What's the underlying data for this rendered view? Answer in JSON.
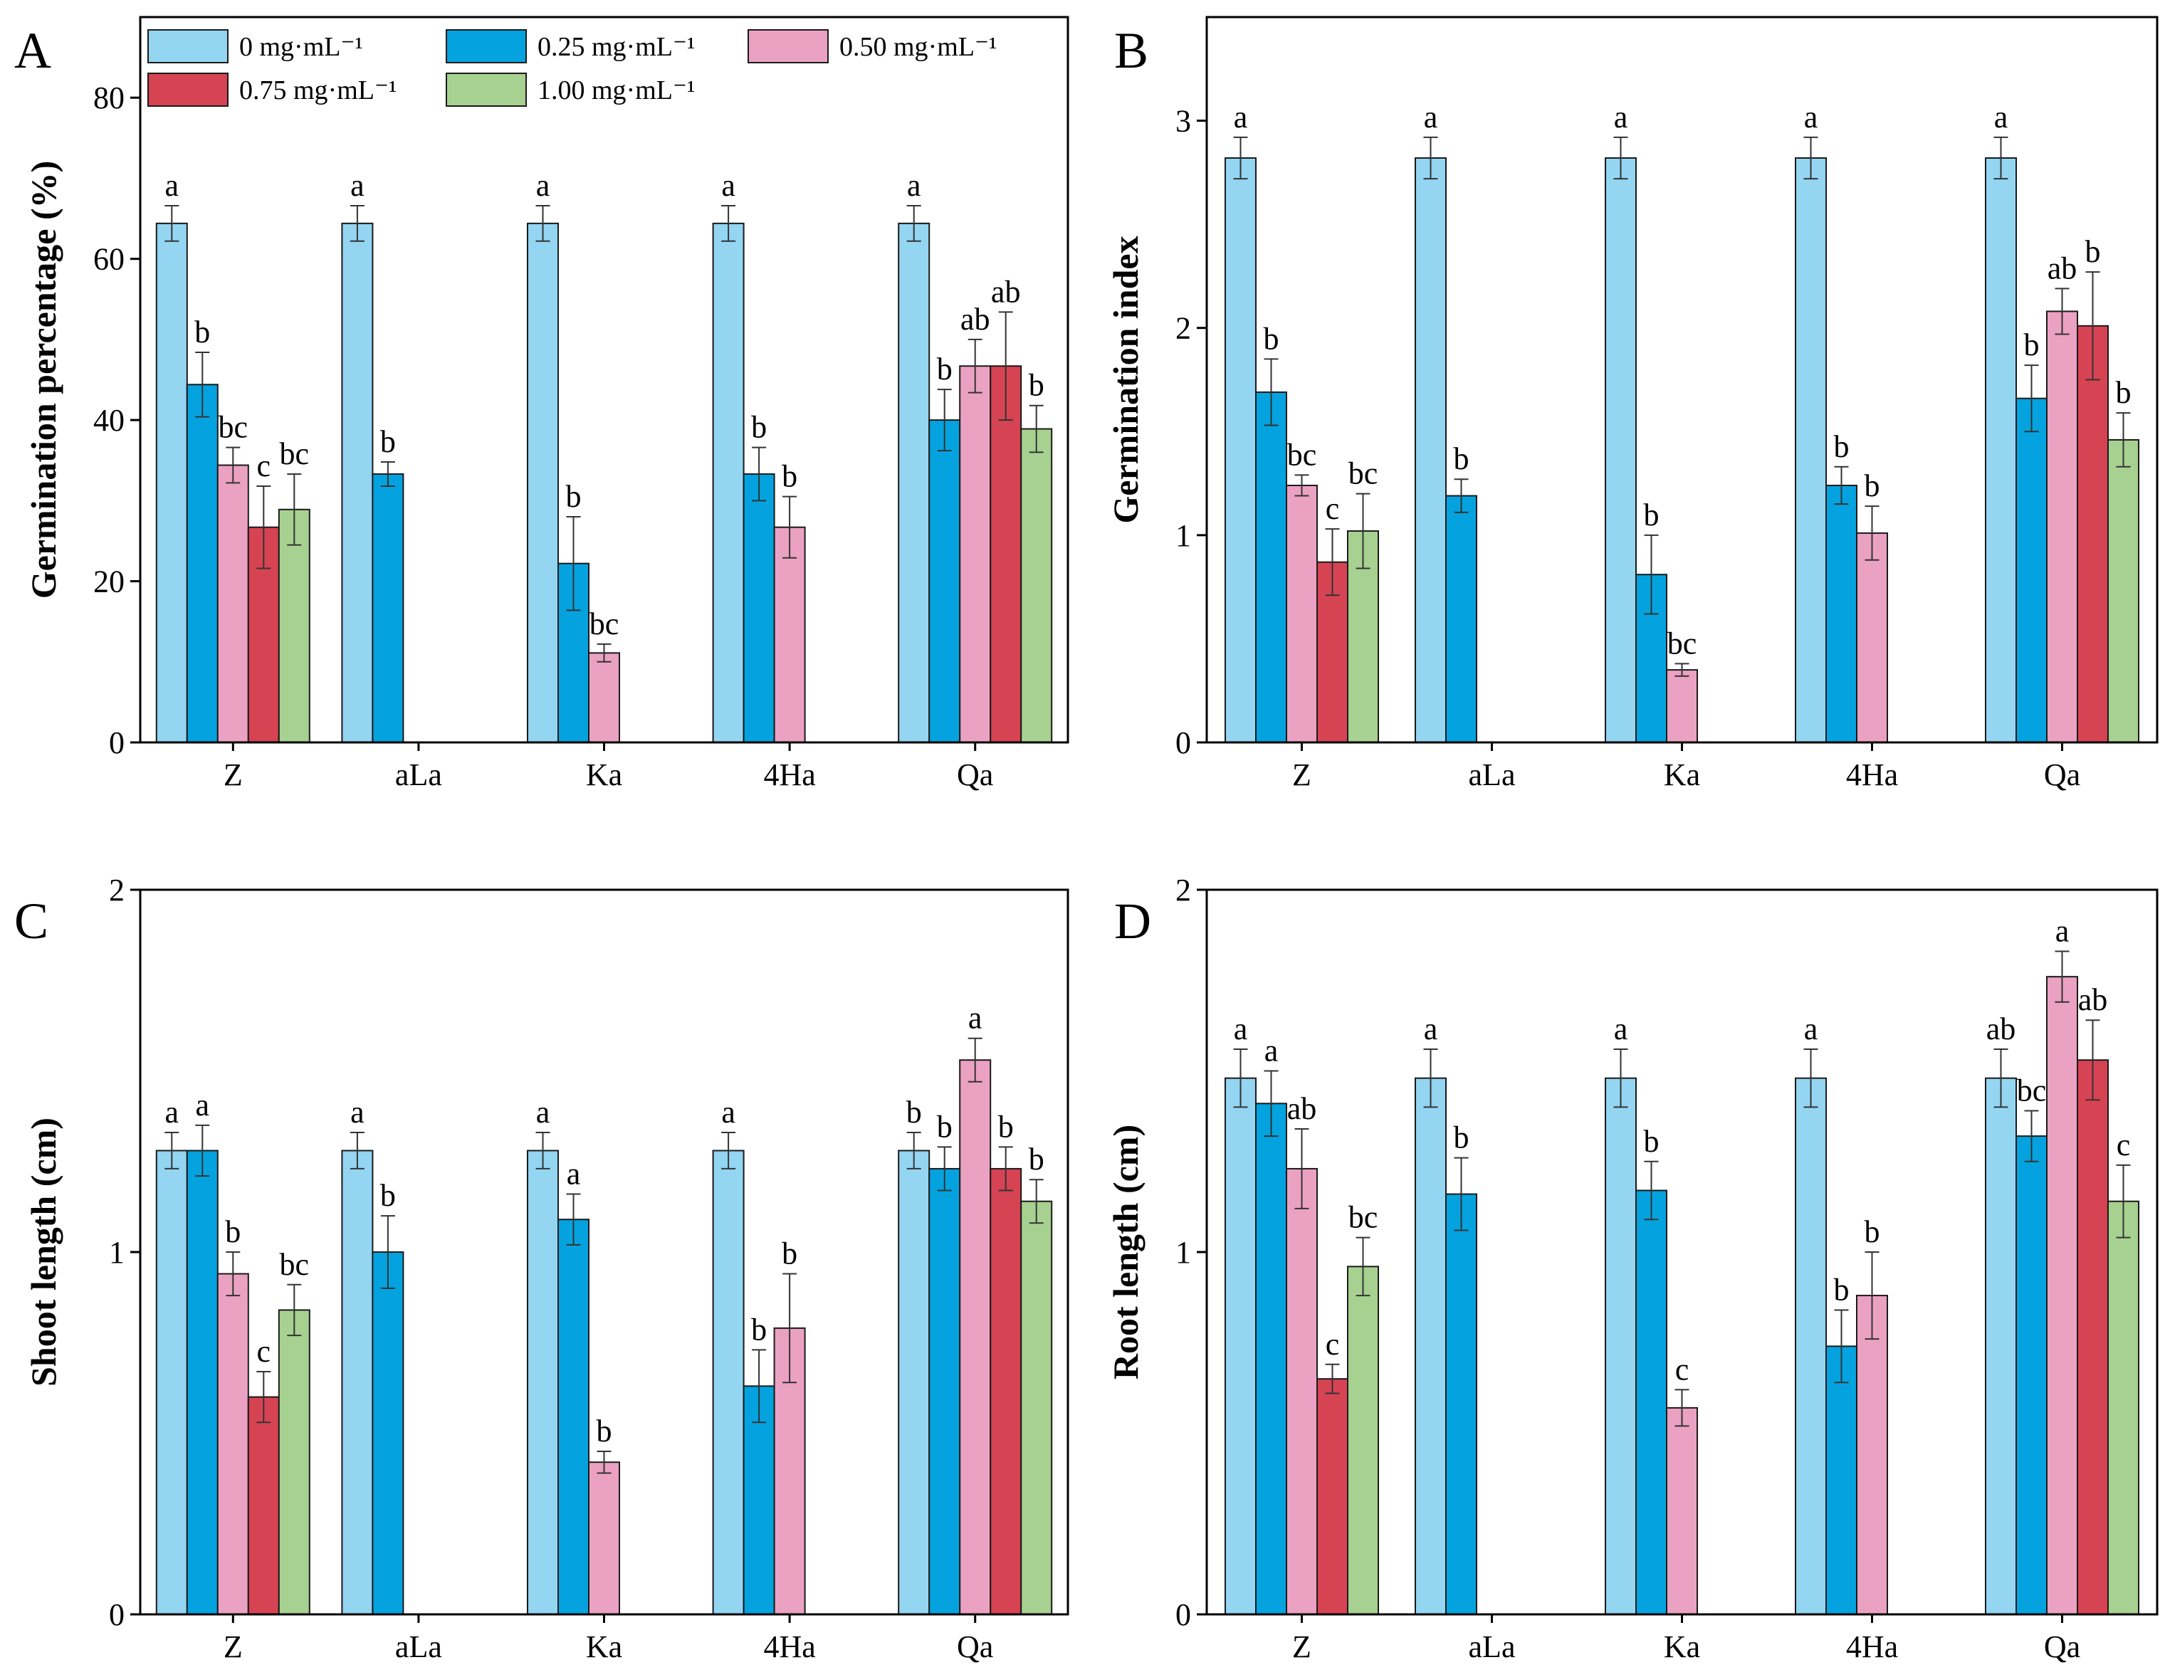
{
  "legend": {
    "entries": [
      {
        "label": "0 mg·mL⁻¹",
        "color": "#94d5f2"
      },
      {
        "label": "0.25 mg·mL⁻¹",
        "color": "#04a3df"
      },
      {
        "label": "0.50 mg·mL⁻¹",
        "color": "#eba2c2"
      },
      {
        "label": "0.75 mg·mL⁻¹",
        "color": "#d64353"
      },
      {
        "label": "1.00 mg·mL⁻¹",
        "color": "#a7d190"
      }
    ]
  },
  "colors": [
    "#94d5f2",
    "#04a3df",
    "#eba2c2",
    "#d64353",
    "#a7d190"
  ],
  "chart_data": [
    {
      "panel": "A",
      "type": "bar",
      "title": "",
      "xlabel": "",
      "ylabel": "Germination percentage (%)",
      "ylim": [
        0,
        90
      ],
      "yticks": [
        0,
        20,
        40,
        60,
        80
      ],
      "categories": [
        "Z",
        "aLa",
        "Ka",
        "4Ha",
        "Qa"
      ],
      "series": [
        {
          "name": "0 mg·mL⁻¹",
          "values": [
            64.4,
            64.4,
            64.4,
            64.4,
            64.4
          ],
          "errors": [
            2.2,
            2.2,
            2.2,
            2.2,
            2.2
          ],
          "labels": [
            "a",
            "a",
            "a",
            "a",
            "a"
          ]
        },
        {
          "name": "0.25 mg·mL⁻¹",
          "values": [
            44.4,
            33.3,
            22.2,
            33.3,
            40.0
          ],
          "errors": [
            4.0,
            1.5,
            5.8,
            3.3,
            3.8
          ],
          "labels": [
            "b",
            "b",
            "b",
            "b",
            "b"
          ]
        },
        {
          "name": "0.50 mg·mL⁻¹",
          "values": [
            34.4,
            null,
            11.1,
            26.7,
            46.7
          ],
          "errors": [
            2.2,
            null,
            1.1,
            3.8,
            3.3
          ],
          "labels": [
            "bc",
            "",
            "bc",
            "b",
            "ab"
          ]
        },
        {
          "name": "0.75 mg·mL⁻¹",
          "values": [
            26.7,
            null,
            null,
            null,
            46.7
          ],
          "errors": [
            5.1,
            null,
            null,
            null,
            6.7
          ],
          "labels": [
            "c",
            "",
            "",
            "",
            "ab"
          ]
        },
        {
          "name": "1.00 mg·mL⁻¹",
          "values": [
            28.9,
            null,
            null,
            null,
            38.9
          ],
          "errors": [
            4.4,
            null,
            null,
            null,
            2.9
          ],
          "labels": [
            "bc",
            "",
            "",
            "",
            "b"
          ]
        }
      ]
    },
    {
      "panel": "B",
      "type": "bar",
      "title": "",
      "xlabel": "",
      "ylabel": "Germination index",
      "ylim": [
        0,
        3.5
      ],
      "yticks": [
        0,
        1,
        2,
        3
      ],
      "categories": [
        "Z",
        "aLa",
        "Ka",
        "4Ha",
        "Qa"
      ],
      "series": [
        {
          "name": "0 mg·mL⁻¹",
          "values": [
            2.82,
            2.82,
            2.82,
            2.82,
            2.82
          ],
          "errors": [
            0.1,
            0.1,
            0.1,
            0.1,
            0.1
          ],
          "labels": [
            "a",
            "a",
            "a",
            "a",
            "a"
          ]
        },
        {
          "name": "0.25 mg·mL⁻¹",
          "values": [
            1.69,
            1.19,
            0.81,
            1.24,
            1.66
          ],
          "errors": [
            0.16,
            0.08,
            0.19,
            0.09,
            0.16
          ],
          "labels": [
            "b",
            "b",
            "b",
            "b",
            "b"
          ]
        },
        {
          "name": "0.50 mg·mL⁻¹",
          "values": [
            1.24,
            null,
            0.35,
            1.01,
            2.08
          ],
          "errors": [
            0.05,
            null,
            0.03,
            0.13,
            0.11
          ],
          "labels": [
            "bc",
            "",
            "bc",
            "b",
            "ab"
          ]
        },
        {
          "name": "0.75 mg·mL⁻¹",
          "values": [
            0.87,
            null,
            null,
            null,
            2.01
          ],
          "errors": [
            0.16,
            null,
            null,
            null,
            0.26
          ],
          "labels": [
            "c",
            "",
            "",
            "",
            "b"
          ]
        },
        {
          "name": "1.00 mg·mL⁻¹",
          "values": [
            1.02,
            null,
            null,
            null,
            1.46
          ],
          "errors": [
            0.18,
            null,
            null,
            null,
            0.13
          ],
          "labels": [
            "bc",
            "",
            "",
            "",
            "b"
          ]
        }
      ]
    },
    {
      "panel": "C",
      "type": "bar",
      "title": "",
      "xlabel": "",
      "ylabel": "Shoot length (cm)",
      "ylim": [
        0,
        2
      ],
      "yticks": [
        0,
        1,
        2
      ],
      "categories": [
        "Z",
        "aLa",
        "Ka",
        "4Ha",
        "Qa"
      ],
      "series": [
        {
          "name": "0 mg·mL⁻¹",
          "values": [
            1.28,
            1.28,
            1.28,
            1.28,
            1.28
          ],
          "errors": [
            0.05,
            0.05,
            0.05,
            0.05,
            0.05
          ],
          "labels": [
            "a",
            "a",
            "a",
            "a",
            "b"
          ]
        },
        {
          "name": "0.25 mg·mL⁻¹",
          "values": [
            1.28,
            1.0,
            1.09,
            0.63,
            1.23
          ],
          "errors": [
            0.07,
            0.1,
            0.07,
            0.1,
            0.06
          ],
          "labels": [
            "a",
            "b",
            "a",
            "b",
            "b"
          ]
        },
        {
          "name": "0.50 mg·mL⁻¹",
          "values": [
            0.94,
            null,
            0.42,
            0.79,
            1.53
          ],
          "errors": [
            0.06,
            null,
            0.03,
            0.15,
            0.06
          ],
          "labels": [
            "b",
            "",
            "b",
            "b",
            "a"
          ]
        },
        {
          "name": "0.75 mg·mL⁻¹",
          "values": [
            0.6,
            null,
            null,
            null,
            1.23
          ],
          "errors": [
            0.07,
            null,
            null,
            null,
            0.06
          ],
          "labels": [
            "c",
            "",
            "",
            "",
            "b"
          ]
        },
        {
          "name": "1.00 mg·mL⁻¹",
          "values": [
            0.84,
            null,
            null,
            null,
            1.14
          ],
          "errors": [
            0.07,
            null,
            null,
            null,
            0.06
          ],
          "labels": [
            "bc",
            "",
            "",
            "",
            "b"
          ]
        }
      ]
    },
    {
      "panel": "D",
      "type": "bar",
      "title": "",
      "xlabel": "",
      "ylabel": "Root length (cm)",
      "ylim": [
        0,
        2
      ],
      "yticks": [
        0,
        1,
        2
      ],
      "categories": [
        "Z",
        "aLa",
        "Ka",
        "4Ha",
        "Qa"
      ],
      "series": [
        {
          "name": "0 mg·mL⁻¹",
          "values": [
            1.48,
            1.48,
            1.48,
            1.48,
            1.48
          ],
          "errors": [
            0.08,
            0.08,
            0.08,
            0.08,
            0.08
          ],
          "labels": [
            "a",
            "a",
            "a",
            "a",
            "ab"
          ]
        },
        {
          "name": "0.25 mg·mL⁻¹",
          "values": [
            1.41,
            1.16,
            1.17,
            0.74,
            1.32
          ],
          "errors": [
            0.09,
            0.1,
            0.08,
            0.1,
            0.07
          ],
          "labels": [
            "a",
            "b",
            "b",
            "b",
            "bc"
          ]
        },
        {
          "name": "0.50 mg·mL⁻¹",
          "values": [
            1.23,
            null,
            0.57,
            0.88,
            1.76
          ],
          "errors": [
            0.11,
            null,
            0.05,
            0.12,
            0.07
          ],
          "labels": [
            "ab",
            "",
            "c",
            "b",
            "a"
          ]
        },
        {
          "name": "0.75 mg·mL⁻¹",
          "values": [
            0.65,
            null,
            null,
            null,
            1.53
          ],
          "errors": [
            0.04,
            null,
            null,
            null,
            0.11
          ],
          "labels": [
            "c",
            "",
            "",
            "",
            "ab"
          ]
        },
        {
          "name": "1.00 mg·mL⁻¹",
          "values": [
            0.96,
            null,
            null,
            null,
            1.14
          ],
          "errors": [
            0.08,
            null,
            null,
            null,
            0.1
          ],
          "labels": [
            "bc",
            "",
            "",
            "",
            "c"
          ]
        }
      ]
    }
  ]
}
